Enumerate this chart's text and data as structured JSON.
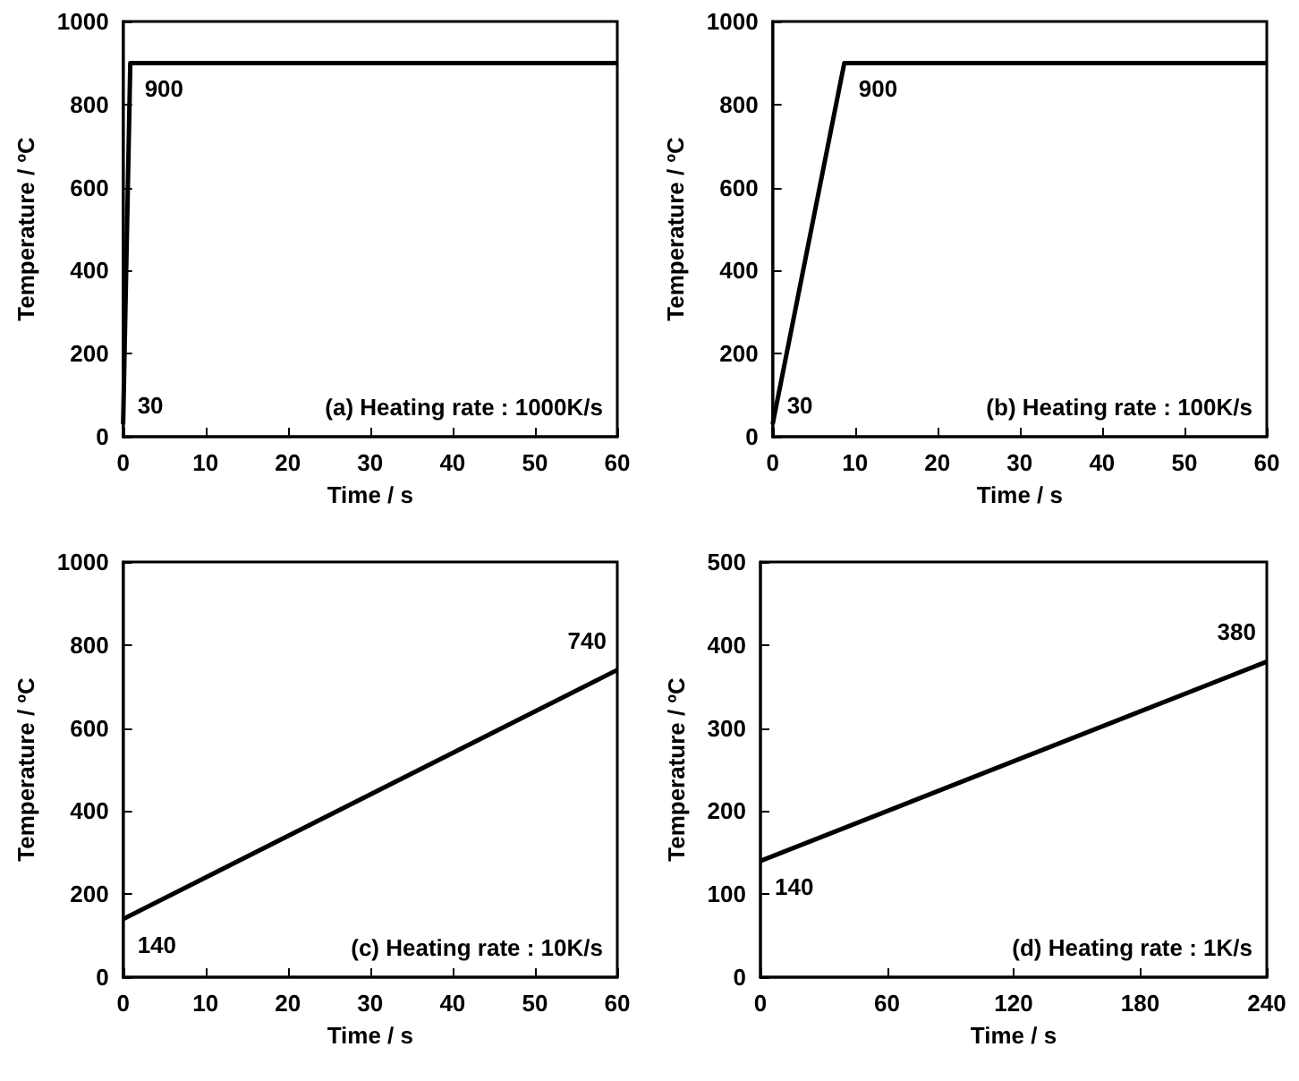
{
  "chart_data": [
    {
      "type": "line",
      "xlabel": "Time / s",
      "ylabel": "Temperature / ºC",
      "x": [
        0,
        0.87,
        60
      ],
      "series": [
        {
          "color": "#000000",
          "values": [
            30,
            900,
            900
          ]
        }
      ],
      "xlim": [
        0,
        60
      ],
      "xticks": [
        0,
        10,
        20,
        30,
        40,
        50,
        60
      ],
      "ylim": [
        0,
        1000
      ],
      "yticks": [
        0,
        200,
        400,
        600,
        800,
        1000
      ],
      "grid": false,
      "marker": "none",
      "line_style": "solid",
      "annotations": [
        {
          "text": "30",
          "x": 0,
          "y": 30
        },
        {
          "text": "900",
          "x": 0.87,
          "y": 900
        },
        "(a) Heating rate : 1000K/s"
      ]
    },
    {
      "type": "line",
      "xlabel": "Time / s",
      "ylabel": "Temperature / ºC",
      "x": [
        0,
        8.7,
        60
      ],
      "series": [
        {
          "color": "#000000",
          "values": [
            30,
            900,
            900
          ]
        }
      ],
      "xlim": [
        0,
        60
      ],
      "xticks": [
        0,
        10,
        20,
        30,
        40,
        50,
        60
      ],
      "ylim": [
        0,
        1000
      ],
      "yticks": [
        0,
        200,
        400,
        600,
        800,
        1000
      ],
      "grid": false,
      "marker": "none",
      "line_style": "solid",
      "annotations": [
        {
          "text": "30",
          "x": 0,
          "y": 30
        },
        {
          "text": "900",
          "x": 8.7,
          "y": 900
        },
        "(b) Heating rate : 100K/s"
      ]
    },
    {
      "type": "line",
      "xlabel": "Time / s",
      "ylabel": "Temperature / ºC",
      "x": [
        0,
        60
      ],
      "series": [
        {
          "color": "#000000",
          "values": [
            140,
            740
          ]
        }
      ],
      "xlim": [
        0,
        60
      ],
      "xticks": [
        0,
        10,
        20,
        30,
        40,
        50,
        60
      ],
      "ylim": [
        0,
        1000
      ],
      "yticks": [
        0,
        200,
        400,
        600,
        800,
        1000
      ],
      "grid": false,
      "marker": "none",
      "line_style": "solid",
      "annotations": [
        {
          "text": "140",
          "x": 0,
          "y": 140
        },
        {
          "text": "740",
          "x": 60,
          "y": 740
        },
        "(c) Heating rate : 10K/s"
      ]
    },
    {
      "type": "line",
      "xlabel": "Time / s",
      "ylabel": "Temperature / ºC",
      "x": [
        0,
        240
      ],
      "series": [
        {
          "color": "#000000",
          "values": [
            140,
            380
          ]
        }
      ],
      "xlim": [
        0,
        240
      ],
      "xticks": [
        0,
        60,
        120,
        180,
        240
      ],
      "ylim": [
        0,
        500
      ],
      "yticks": [
        0,
        100,
        200,
        300,
        400,
        500
      ],
      "grid": false,
      "marker": "none",
      "line_style": "solid",
      "annotations": [
        {
          "text": "140",
          "x": 0,
          "y": 140
        },
        {
          "text": "380",
          "x": 240,
          "y": 380
        },
        "(d) Heating rate : 1K/s"
      ]
    }
  ]
}
